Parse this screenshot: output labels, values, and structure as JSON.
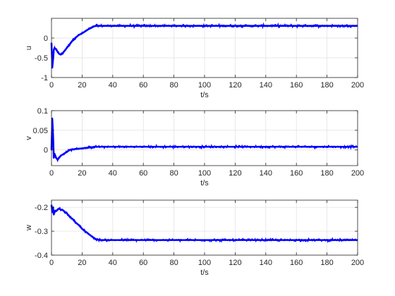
{
  "chart_data": [
    {
      "type": "line",
      "xlabel": "t/s",
      "ylabel": "u",
      "xlim": [
        0,
        200
      ],
      "ylim": [
        -1,
        0.5
      ],
      "xticks": [
        0,
        20,
        40,
        60,
        80,
        100,
        120,
        140,
        160,
        180,
        200
      ],
      "yticks": [
        -1,
        -0.5,
        0
      ],
      "grid": true,
      "color": "#0000ff",
      "series": [
        {
          "x": [
            0,
            0.5,
            1,
            1.5,
            2,
            3,
            4,
            5,
            6,
            7,
            8,
            10,
            12,
            14,
            16,
            18,
            20,
            22,
            24,
            26,
            28,
            30,
            35,
            40,
            50,
            60,
            70,
            80,
            90,
            100,
            110,
            120,
            130,
            140,
            150,
            160,
            170,
            180,
            190,
            200
          ],
          "y": [
            -0.12,
            -0.75,
            -0.55,
            -0.3,
            -0.25,
            -0.28,
            -0.35,
            -0.4,
            -0.42,
            -0.4,
            -0.35,
            -0.25,
            -0.15,
            -0.05,
            0.02,
            0.08,
            0.12,
            0.17,
            0.22,
            0.26,
            0.3,
            0.31,
            0.31,
            0.31,
            0.31,
            0.31,
            0.31,
            0.31,
            0.31,
            0.31,
            0.31,
            0.31,
            0.31,
            0.31,
            0.31,
            0.31,
            0.31,
            0.31,
            0.31,
            0.31
          ]
        }
      ]
    },
    {
      "type": "line",
      "xlabel": "t/s",
      "ylabel": "v",
      "xlim": [
        0,
        200
      ],
      "ylim": [
        -0.04,
        0.1
      ],
      "xticks": [
        0,
        20,
        40,
        60,
        80,
        100,
        120,
        140,
        160,
        180,
        200
      ],
      "yticks": [
        0,
        0.05,
        0.1
      ],
      "grid": true,
      "color": "#0000ff",
      "series": [
        {
          "x": [
            0,
            0.5,
            1,
            1.5,
            2,
            3,
            4,
            5,
            6,
            8,
            10,
            12,
            15,
            20,
            25,
            28,
            30,
            40,
            50,
            60,
            70,
            80,
            90,
            100,
            110,
            120,
            130,
            140,
            150,
            160,
            170,
            180,
            190,
            200
          ],
          "y": [
            0.0,
            0.08,
            0.04,
            -0.02,
            -0.01,
            -0.02,
            -0.025,
            -0.02,
            -0.015,
            -0.01,
            -0.005,
            0.0,
            0.002,
            0.004,
            0.006,
            0.008,
            0.008,
            0.008,
            0.008,
            0.008,
            0.008,
            0.008,
            0.008,
            0.008,
            0.008,
            0.008,
            0.008,
            0.008,
            0.008,
            0.008,
            0.008,
            0.008,
            0.008,
            0.008
          ]
        }
      ]
    },
    {
      "type": "line",
      "xlabel": "t/s",
      "ylabel": "w",
      "xlim": [
        0,
        200
      ],
      "ylim": [
        -0.4,
        -0.17
      ],
      "xticks": [
        0,
        20,
        40,
        60,
        80,
        100,
        120,
        140,
        160,
        180,
        200
      ],
      "yticks": [
        -0.4,
        -0.3,
        -0.2
      ],
      "grid": true,
      "color": "#0000ff",
      "series": [
        {
          "x": [
            0,
            0.5,
            1,
            1.5,
            2,
            3,
            4,
            5,
            6,
            7,
            8,
            10,
            12,
            14,
            16,
            18,
            20,
            22,
            24,
            26,
            28,
            30,
            32,
            35,
            40,
            50,
            60,
            70,
            80,
            90,
            100,
            110,
            120,
            130,
            140,
            150,
            160,
            170,
            180,
            190,
            200
          ],
          "y": [
            -0.19,
            -0.22,
            -0.2,
            -0.23,
            -0.22,
            -0.215,
            -0.21,
            -0.205,
            -0.21,
            -0.21,
            -0.215,
            -0.225,
            -0.24,
            -0.25,
            -0.265,
            -0.275,
            -0.29,
            -0.3,
            -0.31,
            -0.32,
            -0.33,
            -0.335,
            -0.337,
            -0.337,
            -0.337,
            -0.337,
            -0.337,
            -0.337,
            -0.337,
            -0.337,
            -0.337,
            -0.337,
            -0.337,
            -0.337,
            -0.337,
            -0.337,
            -0.337,
            -0.337,
            -0.337,
            -0.337,
            -0.337
          ]
        }
      ]
    }
  ]
}
